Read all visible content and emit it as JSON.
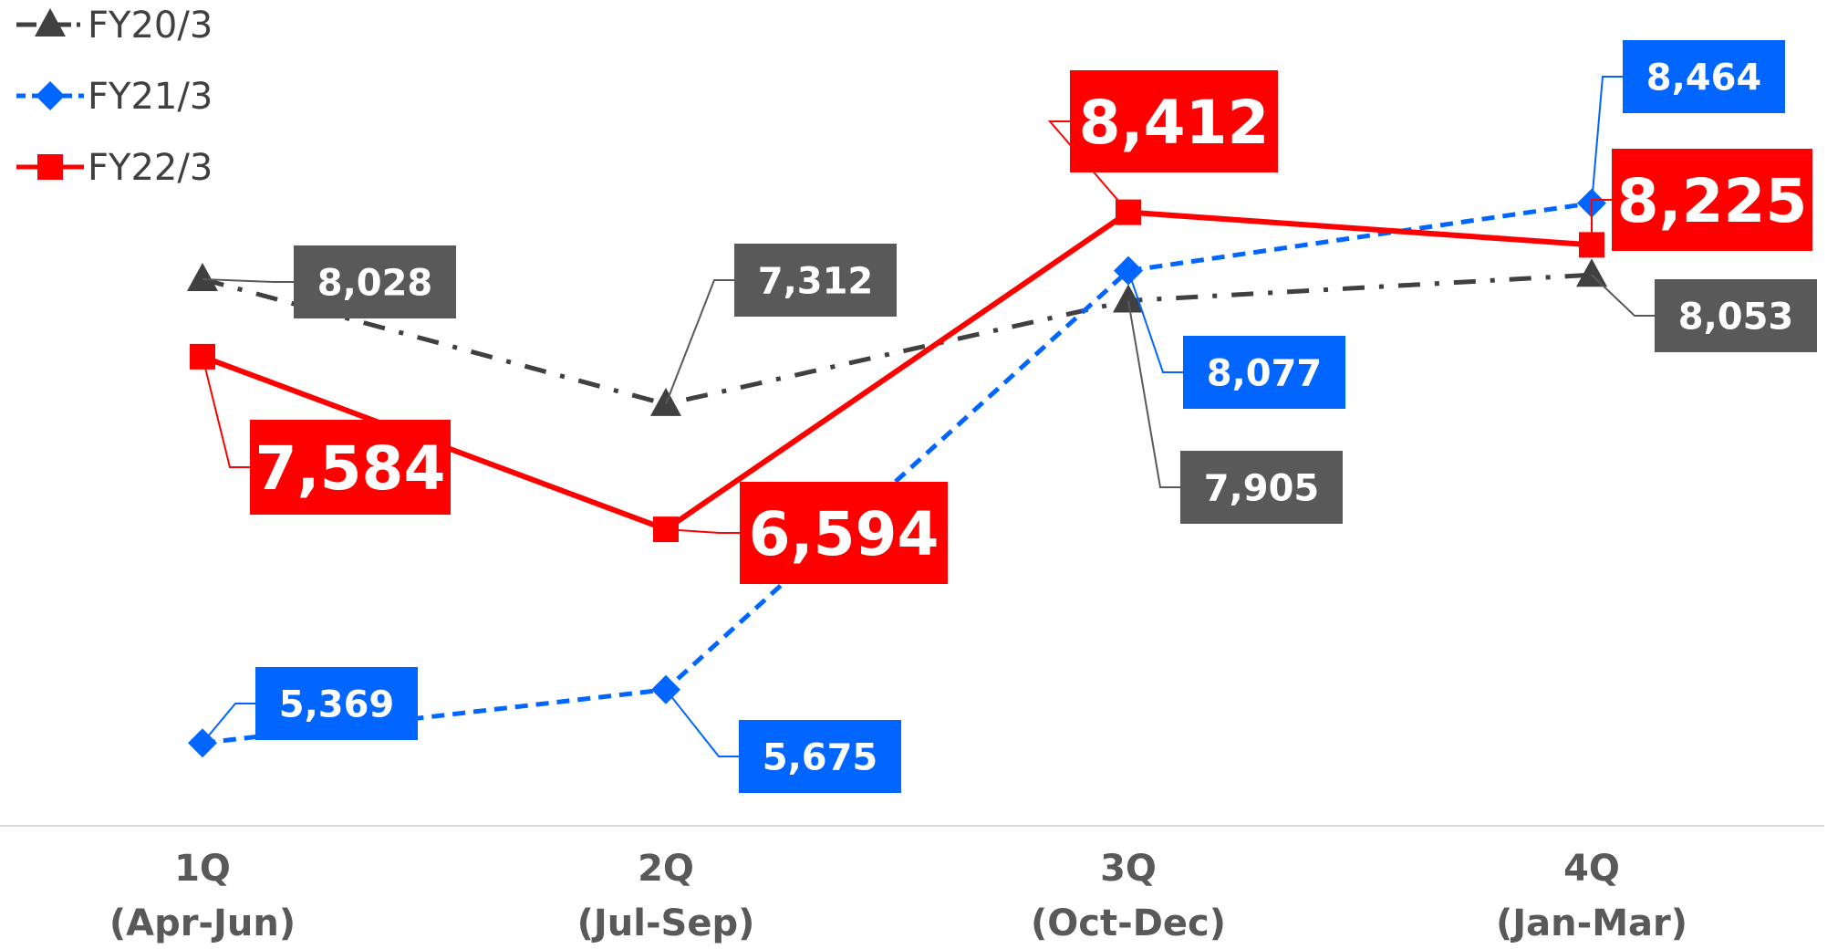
{
  "chart_data": {
    "type": "line",
    "categories": [
      "1Q\n(Apr-Jun)",
      "2Q\n(Jul-Sep)",
      "3Q\n(Oct-Dec)",
      "4Q\n(Jan-Mar)"
    ],
    "category_lines": [
      [
        "1Q",
        "(Apr-Jun)"
      ],
      [
        "2Q",
        "(Jul-Sep)"
      ],
      [
        "3Q",
        "(Oct-Dec)"
      ],
      [
        "4Q",
        "(Jan-Mar)"
      ]
    ],
    "ylim": [
      4800,
      9200
    ],
    "grid": false,
    "legend_position": "top-left",
    "series": [
      {
        "name": "FY20/3",
        "values": [
          8028,
          7312,
          7905,
          8053
        ],
        "labels": [
          "8,028",
          "7,312",
          "7,905",
          "8,053"
        ],
        "color": "#404040",
        "label_bg": "#595959",
        "marker": "triangle",
        "line_style": "dash-dot"
      },
      {
        "name": "FY21/3",
        "values": [
          5369,
          5675,
          8077,
          8464
        ],
        "labels": [
          "5,369",
          "5,675",
          "8,077",
          "8,464"
        ],
        "color": "#0066ff",
        "label_bg": "#0066ff",
        "marker": "diamond",
        "line_style": "dashed"
      },
      {
        "name": "FY22/3",
        "values": [
          7584,
          6594,
          8412,
          8225
        ],
        "labels": [
          "7,584",
          "6,594",
          "8,412",
          "8,225"
        ],
        "color": "#ff0000",
        "label_bg": "#ff0000",
        "marker": "square",
        "line_style": "solid"
      }
    ]
  }
}
